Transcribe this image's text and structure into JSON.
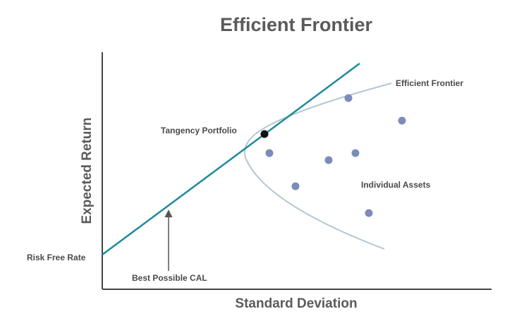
{
  "title": "Efficient Frontier",
  "x_axis_label": "Standard Deviation",
  "y_axis_label": "Expected Return",
  "labels": {
    "efficient_frontier": "Efficient Frontier",
    "tangency_portfolio": "Tangency Portfolio",
    "individual_assets": "Individual Assets",
    "risk_free_rate": "Risk Free Rate",
    "best_possible_cal": "Best Possible CAL"
  },
  "colors": {
    "cal_line": "#1e8a9c",
    "frontier_curve": "#b3c7d3",
    "asset_dot": "#7b8cb8",
    "tangency_dot": "#111111",
    "axis": "#444444",
    "arrow": "#555555",
    "text": "#5a5a5a"
  },
  "icons": {
    "tangency_point": "filled-circle",
    "asset_point": "filled-circle",
    "cal_pointer": "up-arrow"
  }
}
